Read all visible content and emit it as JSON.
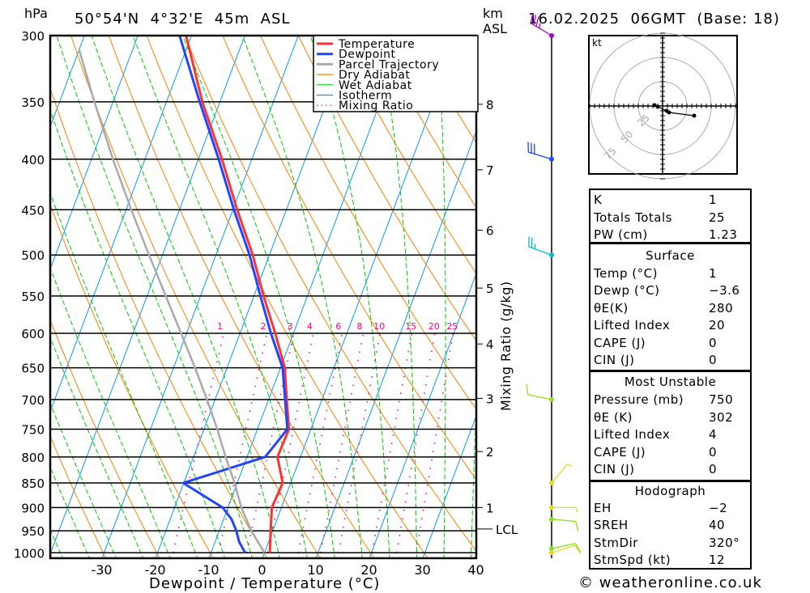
{
  "header": {
    "pressure_unit": "hPa",
    "location": "50°54'N  4°32'E  45m  ASL",
    "height_unit": "km",
    "height_ref": "ASL",
    "datetime": "16.02.2025  06GMT  (Base: 18)"
  },
  "legend": [
    {
      "label": "Temperature",
      "color": "#ff3333",
      "style": "thick"
    },
    {
      "label": "Dewpoint",
      "color": "#2244ff",
      "style": "thick"
    },
    {
      "label": "Parcel Trajectory",
      "color": "#aaaaaa",
      "style": "thick"
    },
    {
      "label": "Dry Adiabat",
      "color": "#ff8000",
      "style": "thin"
    },
    {
      "label": "Wet Adiabat",
      "color": "#00cc00",
      "style": "thin"
    },
    {
      "label": "Isotherm",
      "color": "#0099ff",
      "style": "thin"
    },
    {
      "label": "Mixing Ratio",
      "color": "#ff0080",
      "style": "dotted"
    }
  ],
  "chart_data": {
    "type": "line",
    "subtype": "skew-T log-p",
    "xlabel": "Dewpoint / Temperature (°C)",
    "ylabel": "hPa",
    "right_label": "Mixing Ratio (g/kg)",
    "xlim": [
      -40,
      40
    ],
    "ylim": [
      1000,
      300
    ],
    "pressure_levels": [
      300,
      350,
      400,
      450,
      500,
      550,
      600,
      650,
      700,
      750,
      800,
      850,
      900,
      950,
      1000
    ],
    "temperature_ticks": [
      -30,
      -20,
      -10,
      0,
      10,
      20,
      30,
      40
    ],
    "height_ticks": [
      {
        "label": "8",
        "p": 352
      },
      {
        "label": "7",
        "p": 410
      },
      {
        "label": "6",
        "p": 472
      },
      {
        "label": "5",
        "p": 540
      },
      {
        "label": "4",
        "p": 615
      },
      {
        "label": "3",
        "p": 698
      },
      {
        "label": "2",
        "p": 790
      },
      {
        "label": "1",
        "p": 900
      },
      {
        "label": "LCL",
        "p": 946
      }
    ],
    "mixing_ratio_labels": [
      "1",
      "2",
      "3",
      "4",
      "6",
      "8",
      "10",
      "15",
      "20",
      "25"
    ],
    "mixing_ratio_values": [
      1,
      2,
      3,
      4,
      6,
      8,
      10,
      15,
      20,
      25
    ],
    "series": [
      {
        "name": "Temperature",
        "color": "#ff3333",
        "p": [
          1000,
          950,
          900,
          850,
          800,
          750,
          700,
          650,
          600,
          550,
          500,
          450,
          400,
          350,
          300
        ],
        "t": [
          1,
          -0.4,
          -1.8,
          -1.5,
          -4.3,
          -4.1,
          -6.6,
          -9.2,
          -13.4,
          -18.2,
          -23.1,
          -29.2,
          -35.6,
          -43.3,
          -51
        ]
      },
      {
        "name": "Dewpoint",
        "color": "#2244ff",
        "p": [
          1000,
          975,
          950,
          925,
          900,
          850,
          800,
          750,
          700,
          650,
          600,
          550,
          500,
          450,
          400,
          350,
          300
        ],
        "t": [
          -3.6,
          -5.5,
          -6.8,
          -8.5,
          -11,
          -20.1,
          -6.6,
          -4.4,
          -6.9,
          -9.6,
          -14.2,
          -18.8,
          -23.7,
          -29.8,
          -36.2,
          -43.8,
          -52.2
        ]
      },
      {
        "name": "Parcel Trajectory",
        "color": "#aaaaaa",
        "p": [
          1000,
          950,
          900,
          850,
          800,
          750,
          700,
          650,
          600,
          550,
          500,
          450,
          400,
          350,
          310
        ],
        "t": [
          0,
          -4,
          -7.5,
          -10.5,
          -14,
          -17.5,
          -21.5,
          -26,
          -31,
          -36.5,
          -42.5,
          -49,
          -56,
          -63.5,
          -70
        ]
      }
    ],
    "winds": [
      {
        "p": 300,
        "dir": 301,
        "speed_kt": 35,
        "color": "#aa00cc"
      },
      {
        "p": 400,
        "dir": 287,
        "speed_kt": 30,
        "color": "#2244ff"
      },
      {
        "p": 500,
        "dir": 290,
        "speed_kt": 25,
        "color": "#00bbcc"
      },
      {
        "p": 700,
        "dir": 282,
        "speed_kt": 10,
        "color": "#99dd22"
      },
      {
        "p": 850,
        "dir": 40,
        "speed_kt": 5,
        "color": "#dddd22"
      },
      {
        "p": 900,
        "dir": 90,
        "speed_kt": 5,
        "color": "#dddd22"
      },
      {
        "p": 925,
        "dir": 95,
        "speed_kt": 10,
        "color": "#88dd22"
      },
      {
        "p": 990,
        "dir": 78,
        "speed_kt": 10,
        "color": "#88dd22"
      },
      {
        "p": 1000,
        "dir": 72,
        "speed_kt": 10,
        "color": "#dddd22"
      }
    ],
    "hodograph": {
      "unit": "kt",
      "rings": [
        "25",
        "50",
        "75"
      ],
      "ring_values": [
        25,
        50,
        75
      ],
      "points_uv": [
        [
          -8.3,
          0.8
        ],
        [
          -5,
          -0.8
        ],
        [
          4.2,
          -5
        ],
        [
          6.7,
          -6.7
        ],
        [
          32.5,
          -10
        ]
      ]
    }
  },
  "indices": [
    {
      "label": "K",
      "value": "1"
    },
    {
      "label": "Totals Totals",
      "value": "25"
    },
    {
      "label": "PW (cm)",
      "value": "1.23"
    }
  ],
  "surface": {
    "title": "Surface",
    "rows": [
      {
        "label": "Temp (°C)",
        "value": "1"
      },
      {
        "label": "Dewp (°C)",
        "value": "−3.6"
      },
      {
        "label": "θE(K)",
        "value": "280"
      },
      {
        "label": "Lifted Index",
        "value": "20"
      },
      {
        "label": "CAPE (J)",
        "value": "0"
      },
      {
        "label": "CIN (J)",
        "value": "0"
      }
    ]
  },
  "most_unstable": {
    "title": "Most Unstable",
    "rows": [
      {
        "label": "Pressure (mb)",
        "value": "750"
      },
      {
        "label": "θE (K)",
        "value": "302"
      },
      {
        "label": "Lifted Index",
        "value": "4"
      },
      {
        "label": "CAPE (J)",
        "value": "0"
      },
      {
        "label": "CIN (J)",
        "value": "0"
      }
    ]
  },
  "hodograph_table": {
    "title": "Hodograph",
    "rows": [
      {
        "label": "EH",
        "value": "−2"
      },
      {
        "label": "SREH",
        "value": "40"
      },
      {
        "label": "StmDir",
        "value": "320°"
      },
      {
        "label": "StmSpd (kt)",
        "value": "12"
      }
    ]
  },
  "copyright": "© weatheronline.co.uk"
}
